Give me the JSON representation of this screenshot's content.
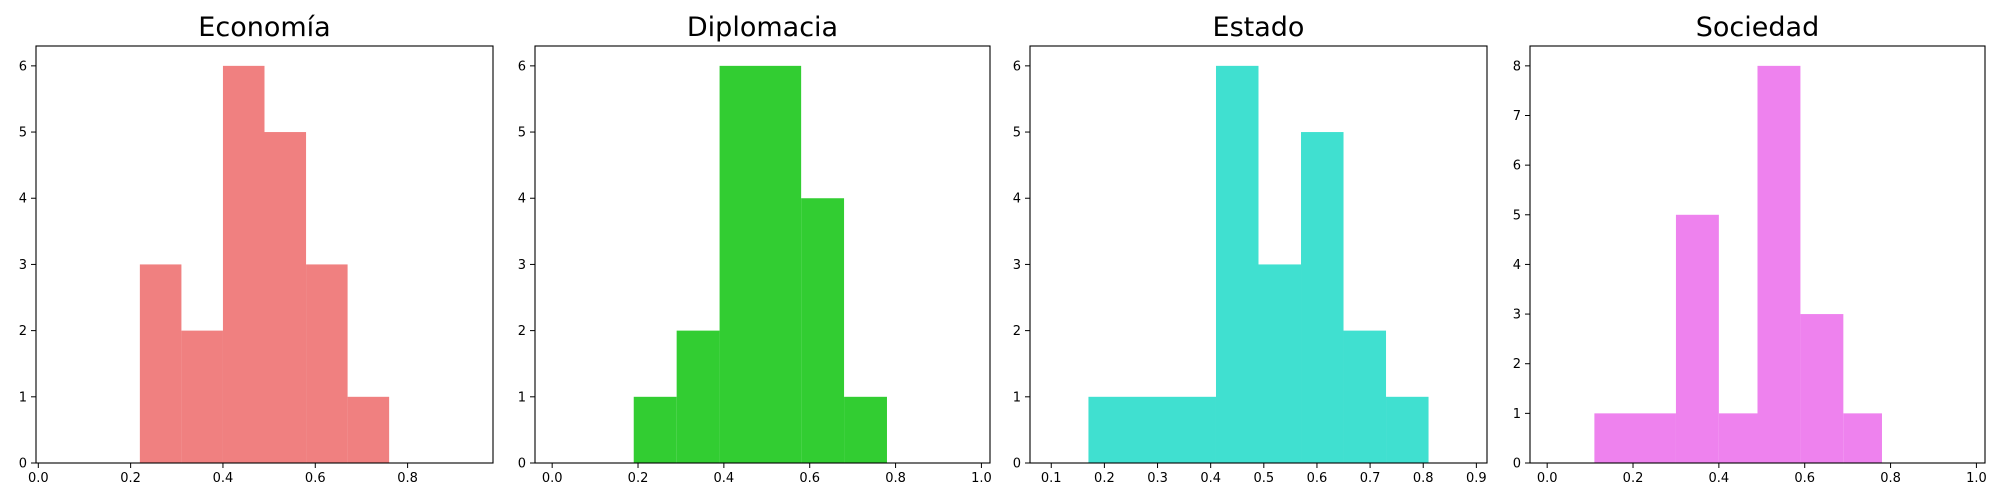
{
  "chart_data": [
    {
      "type": "bar",
      "subtype": "histogram",
      "title": "Economía",
      "color": "#f08080",
      "bins": [
        {
          "x0": 0.22,
          "x1": 0.31,
          "count": 3
        },
        {
          "x0": 0.31,
          "x1": 0.4,
          "count": 2
        },
        {
          "x0": 0.4,
          "x1": 0.49,
          "count": 6
        },
        {
          "x0": 0.49,
          "x1": 0.58,
          "count": 5
        },
        {
          "x0": 0.58,
          "x1": 0.67,
          "count": 3
        },
        {
          "x0": 0.67,
          "x1": 0.76,
          "count": 1
        }
      ],
      "xlim": [
        -0.005,
        0.985
      ],
      "ylim": [
        0,
        6.3
      ],
      "xticks": [
        0.0,
        0.2,
        0.4,
        0.6,
        0.8
      ],
      "xtick_labels": [
        "0.0",
        "0.2",
        "0.4",
        "0.6",
        "0.8"
      ],
      "yticks": [
        0,
        1,
        2,
        3,
        4,
        5,
        6
      ],
      "ytick_labels": [
        "0",
        "1",
        "2",
        "3",
        "4",
        "5",
        "6"
      ]
    },
    {
      "type": "bar",
      "subtype": "histogram",
      "title": "Diplomacia",
      "color": "#32cd32",
      "bins": [
        {
          "x0": 0.19,
          "x1": 0.29,
          "count": 1
        },
        {
          "x0": 0.29,
          "x1": 0.39,
          "count": 2
        },
        {
          "x0": 0.39,
          "x1": 0.58,
          "count": 6
        },
        {
          "x0": 0.58,
          "x1": 0.68,
          "count": 4
        },
        {
          "x0": 0.68,
          "x1": 0.78,
          "count": 1
        }
      ],
      "xlim": [
        -0.04,
        1.02
      ],
      "ylim": [
        0,
        6.3
      ],
      "xticks": [
        0.0,
        0.2,
        0.4,
        0.6,
        0.8,
        1.0
      ],
      "xtick_labels": [
        "0.0",
        "0.2",
        "0.4",
        "0.6",
        "0.8",
        "1.0"
      ],
      "yticks": [
        0,
        1,
        2,
        3,
        4,
        5,
        6
      ],
      "ytick_labels": [
        "0",
        "1",
        "2",
        "3",
        "4",
        "5",
        "6"
      ]
    },
    {
      "type": "bar",
      "subtype": "histogram",
      "title": "Estado",
      "color": "#40e0d0",
      "bins": [
        {
          "x0": 0.17,
          "x1": 0.41,
          "count": 1
        },
        {
          "x0": 0.41,
          "x1": 0.49,
          "count": 6
        },
        {
          "x0": 0.49,
          "x1": 0.57,
          "count": 3
        },
        {
          "x0": 0.57,
          "x1": 0.65,
          "count": 5
        },
        {
          "x0": 0.65,
          "x1": 0.73,
          "count": 2
        },
        {
          "x0": 0.73,
          "x1": 0.81,
          "count": 1
        }
      ],
      "xlim": [
        0.06,
        0.92
      ],
      "ylim": [
        0,
        6.3
      ],
      "xticks": [
        0.1,
        0.2,
        0.3,
        0.4,
        0.5,
        0.6,
        0.7,
        0.8,
        0.9
      ],
      "xtick_labels": [
        "0.1",
        "0.2",
        "0.3",
        "0.4",
        "0.5",
        "0.6",
        "0.7",
        "0.8",
        "0.9"
      ],
      "yticks": [
        0,
        1,
        2,
        3,
        4,
        5,
        6
      ],
      "ytick_labels": [
        "0",
        "1",
        "2",
        "3",
        "4",
        "5",
        "6"
      ]
    },
    {
      "type": "bar",
      "subtype": "histogram",
      "title": "Sociedad",
      "color": "#ee82ee",
      "bins": [
        {
          "x0": 0.11,
          "x1": 0.3,
          "count": 1
        },
        {
          "x0": 0.3,
          "x1": 0.4,
          "count": 5
        },
        {
          "x0": 0.4,
          "x1": 0.49,
          "count": 1
        },
        {
          "x0": 0.49,
          "x1": 0.59,
          "count": 8
        },
        {
          "x0": 0.59,
          "x1": 0.69,
          "count": 3
        },
        {
          "x0": 0.69,
          "x1": 0.78,
          "count": 1
        }
      ],
      "xlim": [
        -0.04,
        1.02
      ],
      "ylim": [
        0,
        8.4
      ],
      "xticks": [
        0.0,
        0.2,
        0.4,
        0.6,
        0.8,
        1.0
      ],
      "xtick_labels": [
        "0.0",
        "0.2",
        "0.4",
        "0.6",
        "0.8",
        "1.0"
      ],
      "yticks": [
        0,
        1,
        2,
        3,
        4,
        5,
        6,
        7,
        8
      ],
      "ytick_labels": [
        "0",
        "1",
        "2",
        "3",
        "4",
        "5",
        "6",
        "7",
        "8"
      ]
    }
  ]
}
